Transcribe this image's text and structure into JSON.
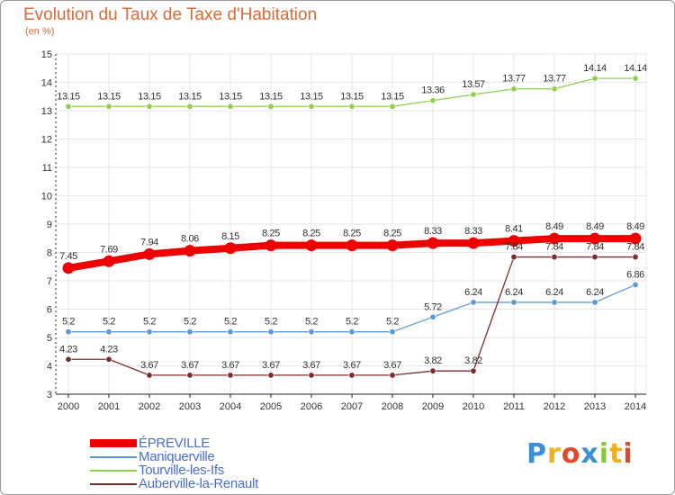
{
  "title": "Evolution du Taux de Taxe d'Habitation",
  "subtitle": "(en %)",
  "chart_data": {
    "type": "line",
    "title": "Evolution du Taux de Taxe d'Habitation",
    "ylabel": "(en %)",
    "xlabel": "",
    "ylim": [
      3,
      15
    ],
    "yticks": [
      3,
      4,
      5,
      6,
      7,
      8,
      9,
      10,
      11,
      12,
      13,
      14,
      15
    ],
    "categories": [
      "2000",
      "2001",
      "2002",
      "2003",
      "2004",
      "2005",
      "2006",
      "2007",
      "2008",
      "2009",
      "2010",
      "2011",
      "2012",
      "2013",
      "2014"
    ],
    "series": [
      {
        "name": "ÉPREVILLE",
        "color": "#ee0000",
        "values": [
          7.45,
          7.69,
          7.94,
          8.06,
          8.15,
          8.25,
          8.25,
          8.25,
          8.25,
          8.33,
          8.33,
          8.41,
          8.49,
          8.49,
          8.49
        ],
        "labels": [
          "7.45",
          "7.69",
          "7.94",
          "8.06",
          "8.15",
          "8.25",
          "8.25",
          "8.25",
          "8.25",
          "8.33",
          "8.33",
          "8.41",
          "8.49",
          "8.49",
          "8.49"
        ]
      },
      {
        "name": "Maniquerville",
        "color": "#5b9bd5",
        "values": [
          5.2,
          5.2,
          5.2,
          5.2,
          5.2,
          5.2,
          5.2,
          5.2,
          5.2,
          5.72,
          6.24,
          6.24,
          6.24,
          6.24,
          6.86
        ],
        "labels": [
          "5.2",
          "5.2",
          "5.2",
          "5.2",
          "5.2",
          "5.2",
          "5.2",
          "5.2",
          "5.2",
          "5.72",
          "6.24",
          "6.24",
          "6.24",
          "6.24",
          "6.86"
        ]
      },
      {
        "name": "Tourville-les-Ifs",
        "color": "#8fd14f",
        "values": [
          13.15,
          13.15,
          13.15,
          13.15,
          13.15,
          13.15,
          13.15,
          13.15,
          13.15,
          13.36,
          13.57,
          13.77,
          13.77,
          14.14,
          14.14
        ],
        "labels": [
          "13.15",
          "13.15",
          "13.15",
          "13.15",
          "13.15",
          "13.15",
          "13.15",
          "13.15",
          "13.15",
          "13.36",
          "13.57",
          "13.77",
          "13.77",
          "14.14",
          "14.14"
        ]
      },
      {
        "name": "Auberville-la-Renault",
        "color": "#7b2c2c",
        "values": [
          4.23,
          4.23,
          3.67,
          3.67,
          3.67,
          3.67,
          3.67,
          3.67,
          3.67,
          3.82,
          3.82,
          7.84,
          7.84,
          7.84,
          7.84
        ],
        "labels": [
          "4.23",
          "4.23",
          "3.67",
          "3.67",
          "3.67",
          "3.67",
          "3.67",
          "3.67",
          "3.67",
          "3.82",
          "3.82",
          "7.84",
          "7.84",
          "7.84",
          "7.84"
        ]
      }
    ]
  },
  "legend": [
    {
      "label": "ÉPREVILLE",
      "color": "#ee0000"
    },
    {
      "label": "Maniquerville",
      "color": "#5b9bd5"
    },
    {
      "label": "Tourville-les-Ifs",
      "color": "#8fd14f"
    },
    {
      "label": "Auberville-la-Renault",
      "color": "#7b2c2c"
    }
  ],
  "brand": {
    "letters": [
      "P",
      "r",
      "o",
      "x",
      "i",
      "t",
      "i"
    ],
    "colors": [
      "#3b8fd6",
      "#f0b020",
      "#e04a2a",
      "#3b8fd6",
      "#8cc63f",
      "#f0b020",
      "#e04a2a"
    ]
  }
}
